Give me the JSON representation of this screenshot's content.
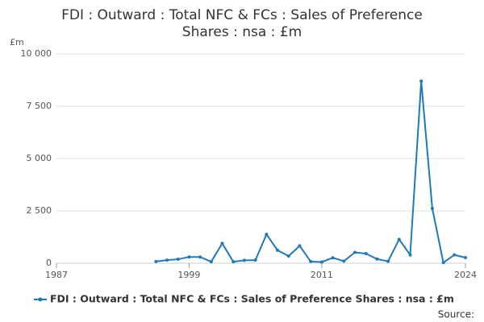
{
  "chart_data": {
    "type": "line",
    "title": [
      "FDI : Outward : Total NFC & FCs : Sales of Preference",
      "Shares : nsa : £m"
    ],
    "y_unit": "£m",
    "source": "Source:",
    "x": [
      1996,
      1997,
      1998,
      1999,
      2000,
      2001,
      2002,
      2003,
      2004,
      2005,
      2006,
      2007,
      2008,
      2009,
      2010,
      2011,
      2012,
      2013,
      2014,
      2015,
      2016,
      2017,
      2018,
      2019,
      2020,
      2021,
      2022,
      2023,
      2024
    ],
    "series": [
      {
        "name": "FDI : Outward : Total NFC & FCs : Sales of Preference Shares : nsa : £m",
        "color": "#1f7ab8",
        "values": [
          80,
          150,
          190,
          300,
          300,
          70,
          950,
          70,
          140,
          150,
          1380,
          620,
          340,
          830,
          80,
          60,
          260,
          100,
          520,
          460,
          200,
          90,
          1140,
          400,
          8700,
          2620,
          30,
          400,
          270
        ]
      }
    ],
    "xlim": [
      1987,
      2024
    ],
    "xticks": [
      1987,
      1999,
      2011,
      2024
    ],
    "ylim": [
      0,
      10000
    ],
    "yticks": [
      0,
      {
        "value": 2500,
        "label": "2 500"
      },
      {
        "value": 5000,
        "label": "5 000"
      },
      {
        "value": 7500,
        "label": "7 500"
      },
      {
        "value": 10000,
        "label": "10 000"
      }
    ],
    "grid": true
  }
}
